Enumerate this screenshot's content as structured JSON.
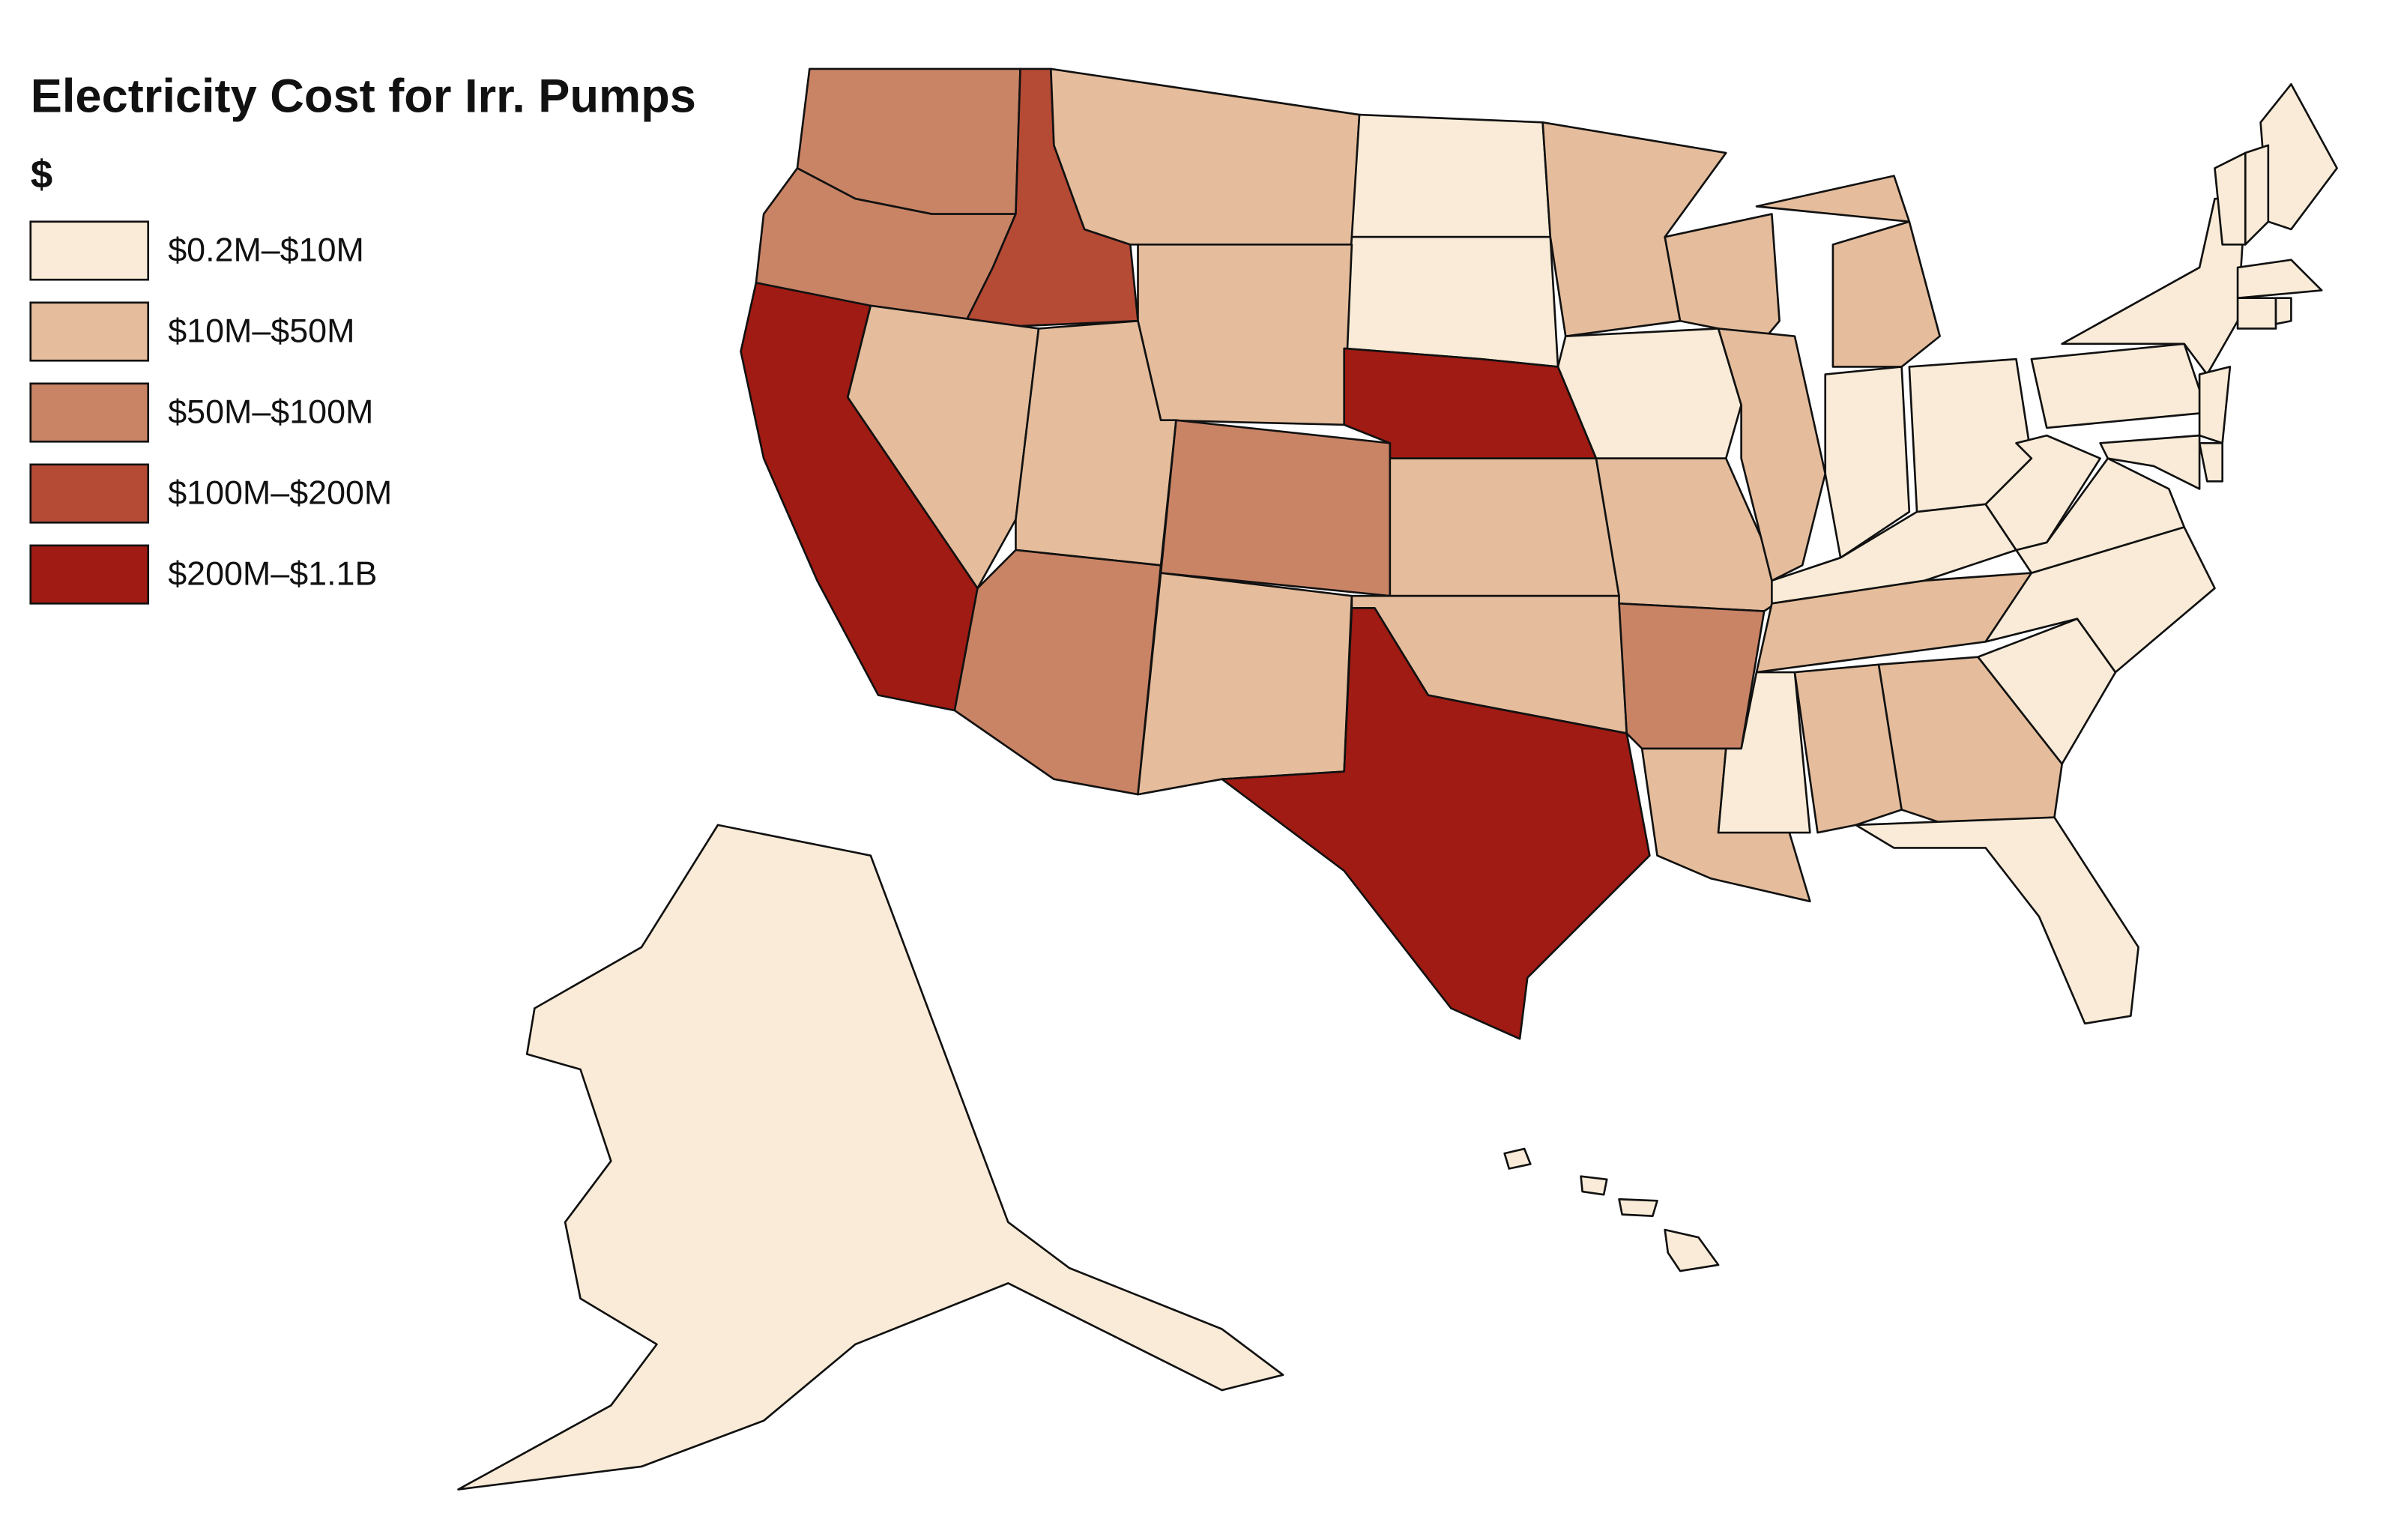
{
  "map": {
    "title": "Electricity Cost for Irr. Pumps",
    "legend": {
      "title": "$",
      "items": [
        {
          "label": "$0.2M–$10M",
          "color": "#f9ebd7"
        },
        {
          "label": "$10M–$50M",
          "color": "#e5bd9c"
        },
        {
          "label": "$50M–$100M",
          "color": "#c98466"
        },
        {
          "label": "$100M–$200M",
          "color": "#b54a35"
        },
        {
          "label": "$200M–$1.1B",
          "color": "#a01b13"
        }
      ]
    },
    "region_classes": [
      2,
      2,
      3,
      1,
      0,
      0,
      1,
      4,
      4,
      1,
      1,
      2,
      2,
      1,
      1,
      1,
      4,
      1,
      0,
      1,
      2,
      1,
      1,
      1,
      1,
      1,
      0,
      0,
      0,
      1,
      0,
      1,
      1,
      0,
      0,
      0,
      0,
      0,
      0,
      0,
      0,
      0,
      0,
      0,
      0,
      0,
      0,
      0,
      0,
      0,
      0,
      0,
      0,
      0
    ]
  }
}
